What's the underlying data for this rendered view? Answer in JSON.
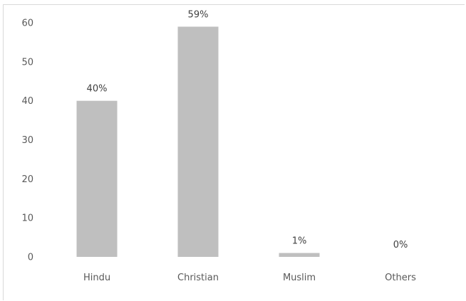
{
  "chart_data": {
    "type": "bar",
    "categories": [
      "Hindu",
      "Christian",
      "Muslim",
      "Others"
    ],
    "values": [
      40,
      59,
      1,
      0
    ],
    "data_labels": [
      "40%",
      "59%",
      "1%",
      "0%"
    ],
    "title": "",
    "xlabel": "",
    "ylabel": "",
    "ylim": [
      0,
      60
    ],
    "yticks": [
      0,
      10,
      20,
      30,
      40,
      50,
      60
    ],
    "grid": false,
    "legend": "none",
    "bar_color": "#bfbfbf"
  }
}
